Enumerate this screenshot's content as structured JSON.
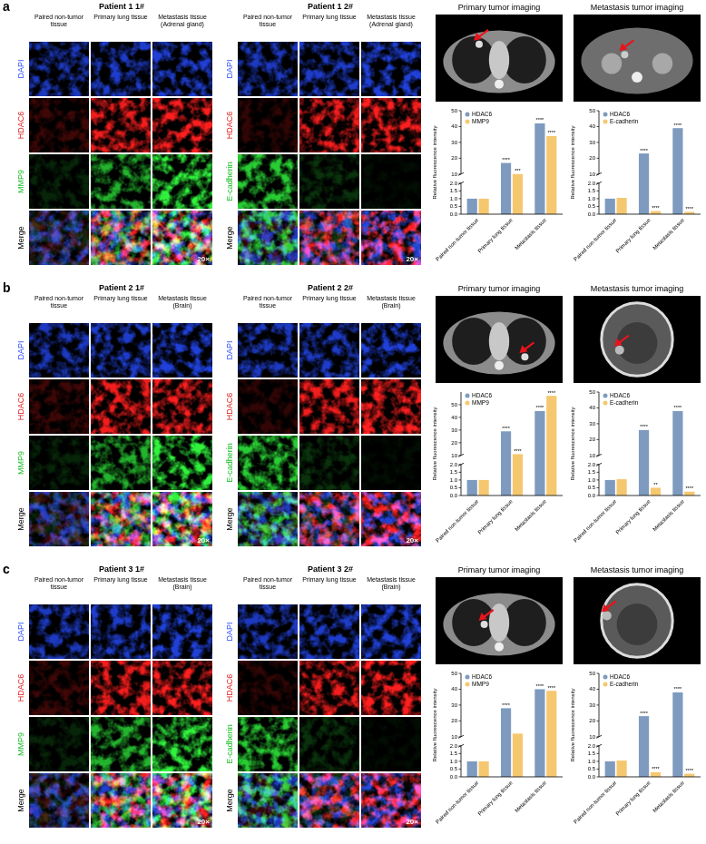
{
  "figure": {
    "panels": [
      {
        "letter": "a",
        "grids": [
          {
            "title": "Patient 1 1#",
            "columns": [
              "Paired non-tumor tissue",
              "Primary lung tissue",
              "Metastasis tissue (Adrenal gland)"
            ],
            "rows": [
              "DAPI",
              "HDAC6",
              "MMP9",
              "Merge"
            ],
            "magnification": "20×"
          },
          {
            "title": "Patient 1 2#",
            "columns": [
              "Paired non-tumor tissue",
              "Primary lung tissue",
              "Metastasis tissue (Adrenal gland)"
            ],
            "rows": [
              "DAPI",
              "HDAC6",
              "E-cadherin",
              "Merge"
            ],
            "magnification": "20×"
          }
        ],
        "imaging": [
          "Primary tumor imaging",
          "Metastasis tumor imaging"
        ]
      },
      {
        "letter": "b",
        "grids": [
          {
            "title": "Patient 2 1#",
            "columns": [
              "Paired non-tumor tissue",
              "Primary lung tissue",
              "Metastasis tissue (Brain)"
            ],
            "rows": [
              "DAPI",
              "HDAC6",
              "MMP9",
              "Merge"
            ],
            "magnification": "20×"
          },
          {
            "title": "Patient 2 2#",
            "columns": [
              "Paired non-tumor tissue",
              "Primary lung tissue",
              "Metastasis tissue (Brain)"
            ],
            "rows": [
              "DAPI",
              "HDAC6",
              "E-cadherin",
              "Merge"
            ],
            "magnification": "20×"
          }
        ],
        "imaging": [
          "Primary tumor imaging",
          "Metastasis tumor imaging"
        ]
      },
      {
        "letter": "c",
        "grids": [
          {
            "title": "Patient 3 1#",
            "columns": [
              "Paired non-tumor tissue",
              "Primary lung tissue",
              "Metastasis tissue (Brain)"
            ],
            "rows": [
              "DAPI",
              "HDAC6",
              "MMP9",
              "Merge"
            ],
            "magnification": "20×"
          },
          {
            "title": "Patient 3 2#",
            "columns": [
              "Paired non-tumor tissue",
              "Primary lung tissue",
              "Metastasis tissue (Brain)"
            ],
            "rows": [
              "DAPI",
              "HDAC6",
              "E-cadherin",
              "Merge"
            ],
            "magnification": "20×"
          }
        ],
        "imaging": [
          "Primary tumor imaging",
          "Metastasis tumor imaging"
        ]
      }
    ]
  },
  "chart_data": [
    {
      "type": "bar",
      "y_label": "Relative fluorescence intensity",
      "categories": [
        "Paired non-tumor tissue",
        "Primary lung tissue",
        "Metastasis tissue"
      ],
      "series": [
        {
          "name": "HDAC6",
          "color": "#7e9bbf",
          "values": [
            1.0,
            17,
            42
          ],
          "significance": [
            null,
            "****",
            "****"
          ]
        },
        {
          "name": "MMP9",
          "color": "#f5c870",
          "values": [
            1.0,
            10,
            34
          ],
          "significance": [
            null,
            "***",
            "****"
          ]
        }
      ],
      "ylim": [
        0,
        50
      ],
      "y_break": [
        2,
        10
      ],
      "yticks": [
        {
          "value": 0,
          "label": "0.0"
        },
        {
          "value": 0.5,
          "label": "0.5"
        },
        {
          "value": 1,
          "label": "1.0"
        },
        {
          "value": 1.5,
          "label": "1.5"
        },
        {
          "value": 2,
          "label": "2.0"
        },
        10,
        20,
        30,
        40,
        50
      ],
      "legend": "upper left",
      "grid": false
    },
    {
      "type": "bar",
      "y_label": "Relative fluorescence intensity",
      "categories": [
        "Paired non-tumor tissue",
        "Primary lung tissue",
        "Metastasis tissue"
      ],
      "series": [
        {
          "name": "HDAC6",
          "color": "#7e9bbf",
          "values": [
            1.0,
            23,
            39
          ],
          "significance": [
            null,
            "****",
            "****"
          ]
        },
        {
          "name": "E-cadherin",
          "color": "#f5c870",
          "values": [
            1.05,
            0.2,
            0.15
          ],
          "significance": [
            null,
            "****",
            "****"
          ]
        }
      ],
      "ylim": [
        0,
        50
      ],
      "y_break": [
        2,
        10
      ],
      "yticks": [
        {
          "value": 0,
          "label": "0.0"
        },
        {
          "value": 0.5,
          "label": "0.5"
        },
        {
          "value": 1,
          "label": "1.0"
        },
        {
          "value": 1.5,
          "label": "1.5"
        },
        {
          "value": 2,
          "label": "2.0"
        },
        10,
        20,
        30,
        40,
        50
      ],
      "legend": "upper left",
      "grid": false
    },
    {
      "type": "bar",
      "y_label": "Relative fluorescence intensity",
      "categories": [
        "Paired non-tumor tissue",
        "Primary lung tissue",
        "Metastasis tissue"
      ],
      "series": [
        {
          "name": "HDAC6",
          "color": "#7e9bbf",
          "values": [
            1.0,
            29,
            45
          ],
          "significance": [
            null,
            "****",
            "****"
          ]
        },
        {
          "name": "MMP9",
          "color": "#f5c870",
          "values": [
            1.0,
            11,
            57
          ],
          "significance": [
            null,
            "****",
            "****"
          ]
        }
      ],
      "ylim": [
        0,
        60
      ],
      "y_break": [
        2,
        10
      ],
      "yticks": [
        {
          "value": 0,
          "label": "0.0"
        },
        {
          "value": 0.5,
          "label": "0.5"
        },
        {
          "value": 1,
          "label": "1.0"
        },
        {
          "value": 1.5,
          "label": "1.5"
        },
        {
          "value": 2,
          "label": "2.0"
        },
        10,
        20,
        30,
        40,
        50
      ],
      "legend": "upper left",
      "grid": false
    },
    {
      "type": "bar",
      "y_label": "Relative fluorescence intensity",
      "categories": [
        "Paired non-tumor tissue",
        "Primary lung tissue",
        "Metastasis tissue"
      ],
      "series": [
        {
          "name": "HDAC6",
          "color": "#7e9bbf",
          "values": [
            1.0,
            26,
            38
          ],
          "significance": [
            null,
            "****",
            "****"
          ]
        },
        {
          "name": "E-cadherin",
          "color": "#f5c870",
          "values": [
            1.05,
            0.5,
            0.25
          ],
          "significance": [
            null,
            "**",
            "****"
          ]
        }
      ],
      "ylim": [
        0,
        50
      ],
      "y_break": [
        2,
        10
      ],
      "yticks": [
        {
          "value": 0,
          "label": "0.0"
        },
        {
          "value": 0.5,
          "label": "0.5"
        },
        {
          "value": 1,
          "label": "1.0"
        },
        {
          "value": 1.5,
          "label": "1.5"
        },
        {
          "value": 2,
          "label": "2.0"
        },
        10,
        20,
        30,
        40,
        50
      ],
      "legend": "upper left",
      "grid": false
    },
    {
      "type": "bar",
      "y_label": "Relative fluorescence intensity",
      "categories": [
        "Paired non-tumor tissue",
        "Primary lung tissue",
        "Metastasis tissue"
      ],
      "series": [
        {
          "name": "HDAC6",
          "color": "#7e9bbf",
          "values": [
            1.0,
            28,
            40
          ],
          "significance": [
            null,
            "****",
            "****"
          ]
        },
        {
          "name": "MMP9",
          "color": "#f5c870",
          "values": [
            1.0,
            12,
            39
          ],
          "significance": [
            null,
            null,
            "****"
          ]
        }
      ],
      "ylim": [
        0,
        50
      ],
      "y_break": [
        2,
        10
      ],
      "yticks": [
        {
          "value": 0,
          "label": "0.0"
        },
        {
          "value": 0.5,
          "label": "0.5"
        },
        {
          "value": 1,
          "label": "1.0"
        },
        {
          "value": 1.5,
          "label": "1.5"
        },
        {
          "value": 2,
          "label": "2.0"
        },
        10,
        20,
        30,
        40,
        50
      ],
      "legend": "upper left",
      "grid": false
    },
    {
      "type": "bar",
      "y_label": "Relative fluorescence intensity",
      "categories": [
        "Paired non-tumor tissue",
        "Primary lung tissue",
        "Metastasis tissue"
      ],
      "series": [
        {
          "name": "HDAC6",
          "color": "#7e9bbf",
          "values": [
            1.0,
            23,
            38
          ],
          "significance": [
            null,
            "****",
            "****"
          ]
        },
        {
          "name": "E-cadherin",
          "color": "#f5c870",
          "values": [
            1.05,
            0.3,
            0.2
          ],
          "significance": [
            null,
            "****",
            "****"
          ]
        }
      ],
      "ylim": [
        0,
        50
      ],
      "y_break": [
        2,
        10
      ],
      "yticks": [
        {
          "value": 0,
          "label": "0.0"
        },
        {
          "value": 0.5,
          "label": "0.5"
        },
        {
          "value": 1,
          "label": "1.0"
        },
        {
          "value": 1.5,
          "label": "1.5"
        },
        {
          "value": 2,
          "label": "2.0"
        },
        10,
        20,
        30,
        40,
        50
      ],
      "legend": "upper left",
      "grid": false
    }
  ]
}
